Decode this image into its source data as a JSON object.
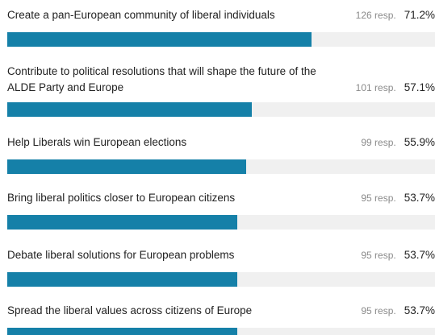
{
  "chart_data": {
    "type": "bar",
    "orientation": "horizontal",
    "xlim": [
      0,
      100
    ],
    "categories": [
      "Create a pan-European community of liberal individuals",
      "Contribute to political resolutions that will shape the future of the ALDE Party and Europe",
      "Help Liberals win European elections",
      "Bring liberal politics closer to European citizens",
      "Debate liberal solutions for European problems",
      "Spread the liberal values across citizens of Europe"
    ],
    "values": [
      71.2,
      57.1,
      55.9,
      53.7,
      53.7,
      53.7
    ],
    "responses": [
      126,
      101,
      99,
      95,
      95,
      95
    ],
    "response_labels": [
      "126 resp.",
      "101 resp.",
      "99 resp.",
      "95 resp.",
      "95 resp.",
      "95 resp."
    ],
    "percent_labels": [
      "71.2%",
      "57.1%",
      "55.9%",
      "53.7%",
      "53.7%",
      "53.7%"
    ],
    "colors": {
      "bar": "#1580a8",
      "track": "#f0f0f0"
    }
  }
}
